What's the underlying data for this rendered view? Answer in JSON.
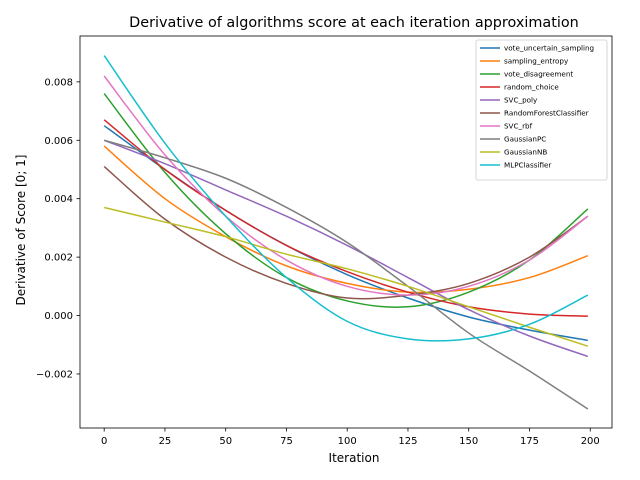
{
  "chart_data": {
    "type": "line",
    "title": "Derivative of algorithms score at each iteration approximation",
    "xlabel": "Iteration",
    "ylabel": "Derivative of Score [0; 1]",
    "xlim": [
      -9.95,
      208.95
    ],
    "ylim": [
      -0.00385,
      0.00957
    ],
    "xticks": [
      0,
      25,
      50,
      75,
      100,
      125,
      150,
      175,
      200
    ],
    "xtick_labels": [
      "0",
      "25",
      "50",
      "75",
      "100",
      "125",
      "150",
      "175",
      "200"
    ],
    "yticks": [
      -0.002,
      0.0,
      0.002,
      0.004,
      0.006,
      0.008
    ],
    "ytick_labels": [
      "−0.002",
      "0.000",
      "0.002",
      "0.004",
      "0.006",
      "0.008"
    ],
    "grid": false,
    "legend_position": "top-right",
    "x": [
      0,
      25,
      50,
      75,
      100,
      125,
      150,
      175,
      199
    ],
    "series": [
      {
        "name": "vote_uncertain_sampling",
        "color": "#1f77b4",
        "values": [
          0.0065,
          0.005,
          0.0036,
          0.0024,
          0.0014,
          0.0006,
          -5e-05,
          -0.0005,
          -0.00085
        ]
      },
      {
        "name": "sampling_entropy",
        "color": "#ff7f0e",
        "values": [
          0.0058,
          0.004,
          0.0027,
          0.0017,
          0.0011,
          0.0008,
          0.0009,
          0.0013,
          0.00205
        ]
      },
      {
        "name": "vote_disagreement",
        "color": "#2ca02c",
        "values": [
          0.0076,
          0.0049,
          0.0028,
          0.0013,
          0.0005,
          0.0003,
          0.0008,
          0.0019,
          0.00365
        ]
      },
      {
        "name": "random_choice",
        "color": "#d62728",
        "values": [
          0.0067,
          0.005,
          0.0036,
          0.0024,
          0.0015,
          0.0008,
          0.0003,
          5e-05,
          -2e-05
        ]
      },
      {
        "name": "SVC_poly",
        "color": "#9467bd",
        "values": [
          0.006,
          0.0052,
          0.0043,
          0.0034,
          0.0024,
          0.0013,
          0.0002,
          -0.0007,
          -0.0014
        ]
      },
      {
        "name": "RandomForestClassifier",
        "color": "#8c564b",
        "values": [
          0.0051,
          0.0033,
          0.002,
          0.0011,
          0.0006,
          0.0007,
          0.0011,
          0.002,
          0.0034
        ]
      },
      {
        "name": "SVC_rbf",
        "color": "#e377c2",
        "values": [
          0.0082,
          0.0055,
          0.0034,
          0.0019,
          0.001,
          0.0007,
          0.001,
          0.0019,
          0.0034
        ]
      },
      {
        "name": "GaussianPC",
        "color": "#7f7f7f",
        "values": [
          0.006,
          0.0054,
          0.0047,
          0.0037,
          0.0025,
          0.001,
          -0.0006,
          -0.0019,
          -0.0032
        ]
      },
      {
        "name": "GaussianNB",
        "color": "#bcbd22",
        "values": [
          0.0037,
          0.0032,
          0.0027,
          0.0021,
          0.0016,
          0.001,
          0.0003,
          -0.0004,
          -0.00105
        ]
      },
      {
        "name": "MLPClassifier",
        "color": "#17becf",
        "values": [
          0.0089,
          0.0059,
          0.0034,
          0.0013,
          -0.0002,
          -0.0008,
          -0.0008,
          -0.0003,
          0.0007
        ]
      }
    ]
  }
}
